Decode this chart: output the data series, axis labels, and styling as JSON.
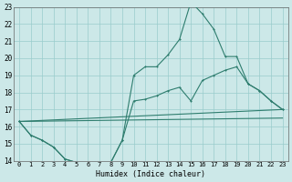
{
  "bg_color": "#cce8e8",
  "grid_color": "#99cccc",
  "line_color": "#2e7d6e",
  "xlabel": "Humidex (Indice chaleur)",
  "xlim": [
    -0.5,
    23.5
  ],
  "ylim": [
    14,
    23
  ],
  "yticks": [
    14,
    15,
    16,
    17,
    18,
    19,
    20,
    21,
    22,
    23
  ],
  "xticks": [
    0,
    1,
    2,
    3,
    4,
    5,
    6,
    7,
    8,
    9,
    10,
    11,
    12,
    13,
    14,
    15,
    16,
    17,
    18,
    19,
    20,
    21,
    22,
    23
  ],
  "line1_x": [
    0,
    1,
    2,
    3,
    4,
    5,
    6,
    7,
    8,
    9,
    10,
    11,
    12,
    13,
    14,
    15,
    16,
    17,
    18,
    19,
    20,
    21,
    22,
    23
  ],
  "line1_y": [
    16.3,
    15.5,
    15.2,
    14.8,
    14.1,
    13.9,
    13.85,
    13.85,
    13.9,
    15.2,
    19.0,
    19.5,
    19.5,
    20.2,
    21.1,
    23.3,
    22.6,
    21.7,
    20.1,
    20.1,
    18.5,
    18.1,
    17.5,
    17.0
  ],
  "line1_markers": true,
  "line2_x": [
    0,
    1,
    2,
    3,
    4,
    5,
    6,
    7,
    8,
    9,
    10,
    11,
    12,
    13,
    14,
    15,
    16,
    17,
    18,
    19,
    20,
    21,
    22,
    23
  ],
  "line2_y": [
    16.3,
    15.5,
    15.2,
    14.8,
    14.1,
    13.9,
    13.85,
    13.85,
    13.9,
    15.2,
    17.5,
    17.6,
    17.8,
    18.1,
    18.3,
    17.5,
    18.7,
    19.0,
    19.3,
    19.5,
    18.5,
    18.1,
    17.5,
    17.0
  ],
  "line2_markers": true,
  "line3_x": [
    0,
    23
  ],
  "line3_y": [
    16.3,
    17.0
  ],
  "line3_markers": false,
  "line4_x": [
    0,
    23
  ],
  "line4_y": [
    16.3,
    16.5
  ],
  "line4_markers": false
}
